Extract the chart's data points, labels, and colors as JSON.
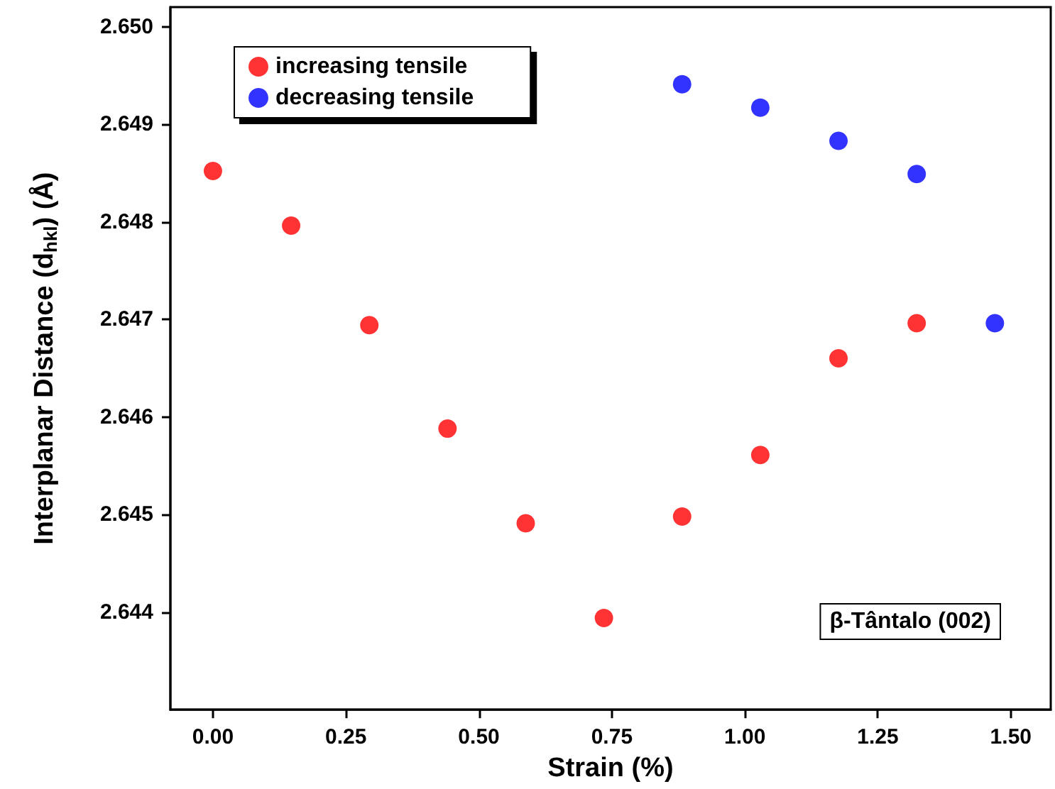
{
  "chart_data": {
    "type": "scatter",
    "xlabel": "Strain (%)",
    "ylabel": "Interplanar Distance (d$_{hkl}$) (Å)",
    "series": [
      {
        "name": "increasing tensile",
        "color": "#ff0000",
        "x": [
          0,
          0.147,
          0.294,
          0.441,
          0.588,
          0.735,
          0.882,
          1.029,
          1.176,
          1.323
        ],
        "values": [
          2.64852,
          2.64796,
          2.64694,
          2.64588,
          2.64491,
          2.64394,
          2.64498,
          2.64561,
          2.6466,
          2.64696
        ]
      },
      {
        "name": "decreasing tensile",
        "color": "#0000ff",
        "x": [
          0.882,
          1.029,
          1.176,
          1.323,
          1.47
        ],
        "values": [
          2.64941,
          2.64917,
          2.64883,
          2.64849,
          2.64696
        ]
      }
    ],
    "xlim": [
      -0.08,
      1.575
    ],
    "ylim": [
      2.643,
      2.6502
    ],
    "xticks": [
      {
        "value": 0,
        "label": "0.00"
      },
      {
        "value": 0.25,
        "label": "0.25"
      },
      {
        "value": 0.5,
        "label": "0.50"
      },
      {
        "value": 0.75,
        "label": "0.75"
      },
      {
        "value": 1,
        "label": "1.00"
      },
      {
        "value": 1.25,
        "label": "1.25"
      },
      {
        "value": 1.5,
        "label": "1.50"
      }
    ],
    "yticks": [
      {
        "value": 2.644,
        "label": "2.644"
      },
      {
        "value": 2.645,
        "label": "2.645"
      },
      {
        "value": 2.646,
        "label": "2.646"
      },
      {
        "value": 2.647,
        "label": "2.647"
      },
      {
        "value": 2.648,
        "label": "2.648"
      },
      {
        "value": 2.649,
        "label": "2.649"
      },
      {
        "value": 2.65,
        "label": "2.650"
      }
    ],
    "annotations": [
      "β-Tântalo (002)"
    ],
    "legend": "top left",
    "marker": "circle",
    "grid": false
  }
}
